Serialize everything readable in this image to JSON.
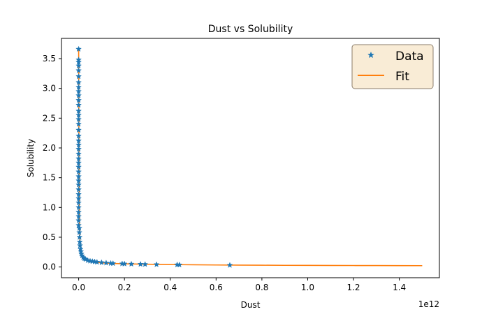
{
  "chart_data": {
    "type": "scatter",
    "title": "Dust vs Solubility",
    "xlabel": "Dust",
    "ylabel": "Solubility",
    "x_offset_label": "1e12",
    "x_scale": 1000000000000.0,
    "xlim": [
      -0.075,
      1.575
    ],
    "ylim": [
      -0.18,
      3.84
    ],
    "x_ticks": [
      0.0,
      0.2,
      0.4,
      0.6,
      0.8,
      1.0,
      1.2,
      1.4
    ],
    "x_tick_labels": [
      "0.0",
      "0.2",
      "0.4",
      "0.6",
      "0.8",
      "1.0",
      "1.2",
      "1.4"
    ],
    "y_ticks": [
      0.0,
      0.5,
      1.0,
      1.5,
      2.0,
      2.5,
      3.0,
      3.5
    ],
    "y_tick_labels": [
      "0.0",
      "0.5",
      "1.0",
      "1.5",
      "2.0",
      "2.5",
      "3.0",
      "3.5"
    ],
    "grid": false,
    "legend_position": "top-right",
    "colors": {
      "data": "#1f77b4",
      "fit": "#ff7f0e",
      "legend_bg": "#f9ecd6",
      "legend_edge": "#8b7d6b"
    },
    "series": [
      {
        "name": "Data",
        "kind": "marker-star",
        "points": [
          [
            0.0,
            3.66
          ],
          [
            0.0,
            3.48
          ],
          [
            0.0,
            3.44
          ],
          [
            0.0,
            3.38
          ],
          [
            0.0,
            3.3
          ],
          [
            0.0,
            3.2
          ],
          [
            0.0,
            3.1
          ],
          [
            0.0,
            3.02
          ],
          [
            0.0,
            2.95
          ],
          [
            0.0,
            2.88
          ],
          [
            0.0,
            2.8
          ],
          [
            0.0,
            2.72
          ],
          [
            0.0,
            2.62
          ],
          [
            0.0,
            2.55
          ],
          [
            0.0,
            2.48
          ],
          [
            0.0,
            2.4
          ],
          [
            0.0,
            2.3
          ],
          [
            0.0,
            2.2
          ],
          [
            0.0,
            2.12
          ],
          [
            0.0,
            2.05
          ],
          [
            0.0,
            1.98
          ],
          [
            0.0,
            1.9
          ],
          [
            0.0,
            1.82
          ],
          [
            0.0,
            1.75
          ],
          [
            0.0,
            1.68
          ],
          [
            0.0,
            1.6
          ],
          [
            0.0,
            1.52
          ],
          [
            0.0,
            1.45
          ],
          [
            0.0,
            1.38
          ],
          [
            0.0,
            1.3
          ],
          [
            0.0,
            1.22
          ],
          [
            0.0,
            1.15
          ],
          [
            0.0,
            1.08
          ],
          [
            0.0,
            1.0
          ],
          [
            0.0,
            0.92
          ],
          [
            0.0,
            0.85
          ],
          [
            0.0,
            0.78
          ],
          [
            0.0,
            0.7
          ],
          [
            0.003,
            0.65
          ],
          [
            0.003,
            0.58
          ],
          [
            0.004,
            0.5
          ],
          [
            0.005,
            0.42
          ],
          [
            0.006,
            0.36
          ],
          [
            0.008,
            0.3
          ],
          [
            0.01,
            0.26
          ],
          [
            0.012,
            0.22
          ],
          [
            0.015,
            0.19
          ],
          [
            0.02,
            0.16
          ],
          [
            0.025,
            0.14
          ],
          [
            0.03,
            0.13
          ],
          [
            0.04,
            0.11
          ],
          [
            0.05,
            0.1
          ],
          [
            0.06,
            0.095
          ],
          [
            0.07,
            0.088
          ],
          [
            0.08,
            0.082
          ],
          [
            0.1,
            0.075
          ],
          [
            0.12,
            0.068
          ],
          [
            0.14,
            0.062
          ],
          [
            0.15,
            0.06
          ],
          [
            0.19,
            0.055
          ],
          [
            0.2,
            0.053
          ],
          [
            0.23,
            0.05
          ],
          [
            0.27,
            0.047
          ],
          [
            0.29,
            0.045
          ],
          [
            0.34,
            0.042
          ],
          [
            0.43,
            0.038
          ],
          [
            0.44,
            0.037
          ],
          [
            0.66,
            0.03
          ]
        ]
      },
      {
        "name": "Fit",
        "kind": "line",
        "points": [
          [
            0.0,
            3.66
          ],
          [
            0.0005,
            3.0
          ],
          [
            0.001,
            2.3
          ],
          [
            0.0015,
            1.7
          ],
          [
            0.002,
            1.25
          ],
          [
            0.003,
            0.85
          ],
          [
            0.004,
            0.62
          ],
          [
            0.006,
            0.42
          ],
          [
            0.008,
            0.32
          ],
          [
            0.01,
            0.26
          ],
          [
            0.015,
            0.19
          ],
          [
            0.02,
            0.16
          ],
          [
            0.03,
            0.125
          ],
          [
            0.05,
            0.095
          ],
          [
            0.08,
            0.078
          ],
          [
            0.1,
            0.07
          ],
          [
            0.15,
            0.06
          ],
          [
            0.2,
            0.054
          ],
          [
            0.3,
            0.046
          ],
          [
            0.4,
            0.041
          ],
          [
            0.5,
            0.037
          ],
          [
            0.6,
            0.034
          ],
          [
            0.7,
            0.032
          ],
          [
            0.8,
            0.03
          ],
          [
            0.9,
            0.028
          ],
          [
            1.0,
            0.027
          ],
          [
            1.1,
            0.026
          ],
          [
            1.2,
            0.025
          ],
          [
            1.3,
            0.024
          ],
          [
            1.4,
            0.023
          ],
          [
            1.5,
            0.022
          ]
        ]
      }
    ]
  }
}
